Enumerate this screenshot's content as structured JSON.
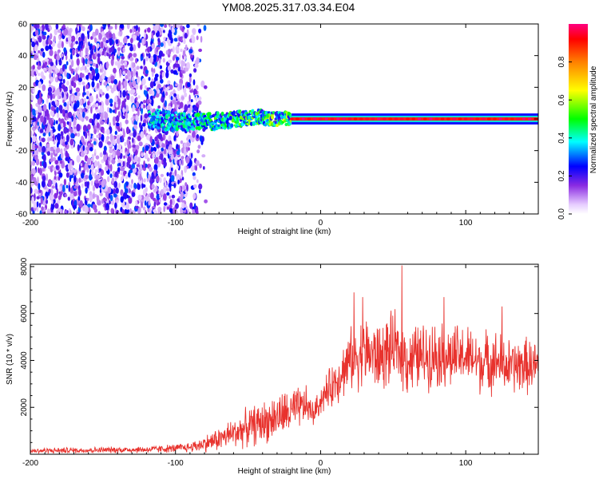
{
  "title": "YM08.2025.317.03.34.E04",
  "chart_data": [
    {
      "type": "heatmap",
      "xlabel": "Height of straight line (km)",
      "ylabel": "Frequency (Hz)",
      "xlim": [
        -200,
        150
      ],
      "ylim": [
        -60,
        60
      ],
      "x_ticks": [
        -200,
        -100,
        0,
        100
      ],
      "x_tick_labels": [
        "-200",
        "-100",
        "0",
        "100"
      ],
      "y_ticks": [
        -60,
        -40,
        -20,
        0,
        20,
        40,
        60
      ],
      "y_tick_labels": [
        "-60",
        "-40",
        "-20",
        "0",
        "20",
        "40",
        "60"
      ],
      "colorbar": {
        "label": "Normalized spectral amplitude",
        "range": [
          0,
          1
        ],
        "ticks": [
          0,
          0.2,
          0.4,
          0.6,
          0.8
        ],
        "tick_labels": [
          "0.0",
          "0.2",
          "0.4",
          "0.6",
          "0.8"
        ]
      },
      "features": [
        {
          "region": "scattered broadband noise",
          "x_range": [
            -200,
            -78
          ],
          "freq_range": [
            -60,
            60
          ],
          "amplitude": [
            0.05,
            0.3
          ]
        },
        {
          "region": "emerging band",
          "x_range": [
            -118,
            -20
          ],
          "freq_center": 0,
          "amplitude": [
            0.2,
            0.6
          ]
        },
        {
          "region": "strong narrow line",
          "x_range": [
            -20,
            150
          ],
          "freq_center": 0,
          "amplitude": [
            0.9,
            1.0
          ]
        }
      ]
    },
    {
      "type": "line",
      "xlabel": "Height of straight line (km)",
      "ylabel": "SNR (10 * v/v)",
      "xlim": [
        -200,
        150
      ],
      "ylim": [
        0,
        8100
      ],
      "x_ticks": [
        -200,
        -100,
        0,
        100
      ],
      "x_tick_labels": [
        "-200",
        "-100",
        "0",
        "100"
      ],
      "y_ticks": [
        2000,
        4000,
        6000,
        8000
      ],
      "y_tick_labels": [
        "2000",
        "4000",
        "6000",
        "8000"
      ],
      "series": [
        {
          "name": "SNR",
          "color": "#e8322d",
          "envelope_x": [
            -200,
            -150,
            -120,
            -100,
            -90,
            -80,
            -70,
            -60,
            -50,
            -40,
            -30,
            -20,
            -10,
            -5,
            0,
            10,
            20,
            30,
            40,
            50,
            57,
            60,
            70,
            80,
            90,
            100,
            110,
            120,
            130,
            140,
            150
          ],
          "envelope_mean": [
            150,
            180,
            200,
            250,
            300,
            450,
            650,
            900,
            1150,
            1350,
            1600,
            1800,
            2100,
            1700,
            2300,
            3100,
            4000,
            4400,
            4100,
            4500,
            4300,
            4000,
            4200,
            4300,
            4100,
            4200,
            3900,
            4000,
            3700,
            3800,
            3700
          ],
          "envelope_spread": [
            120,
            130,
            150,
            180,
            220,
            350,
            500,
            650,
            800,
            900,
            950,
            1000,
            800,
            500,
            600,
            1000,
            1300,
            1500,
            1500,
            1500,
            1500,
            1500,
            1400,
            1400,
            1400,
            1300,
            1300,
            1300,
            1200,
            1200,
            1100
          ],
          "peaks": [
            {
              "x": 56,
              "y": 8050
            },
            {
              "x": 23,
              "y": 6900
            },
            {
              "x": 29,
              "y": 6700
            },
            {
              "x": 85,
              "y": 6700
            },
            {
              "x": 125,
              "y": 6300
            }
          ]
        }
      ]
    }
  ]
}
